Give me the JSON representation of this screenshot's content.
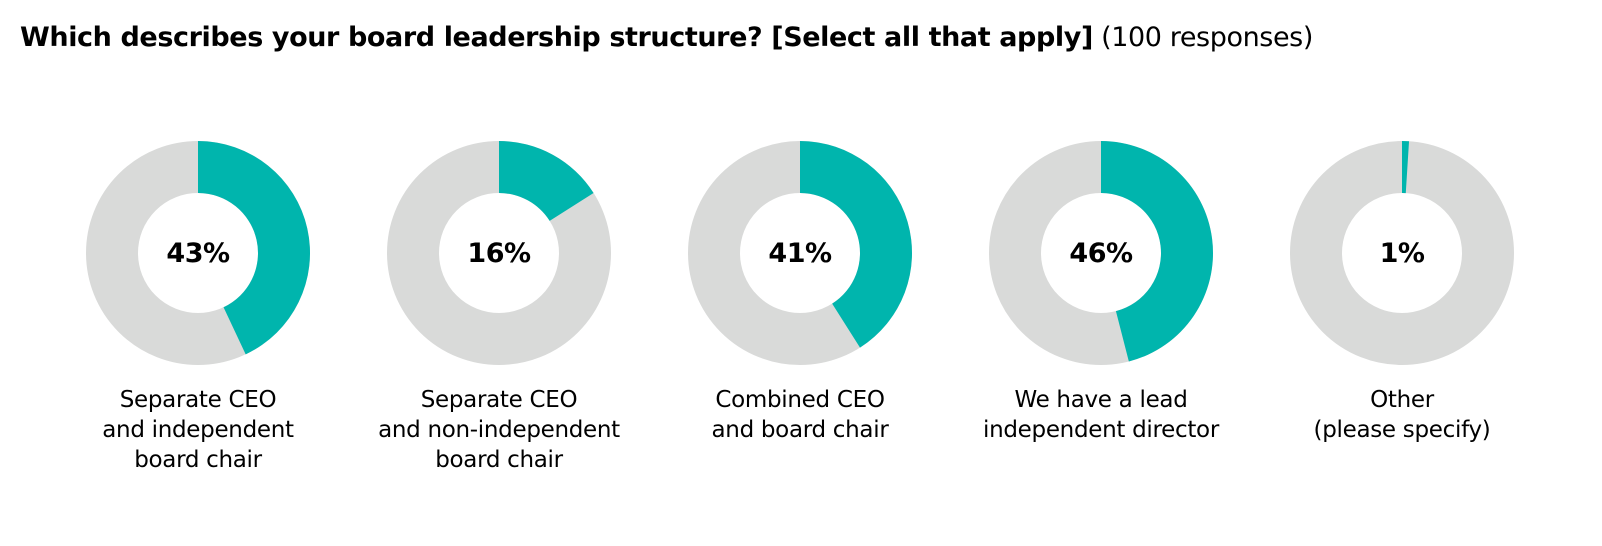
{
  "title": {
    "question": "Which describes your board leadership structure? [Select all that apply]",
    "responses": "(100 responses)"
  },
  "colors": {
    "highlight": "#00b5ad",
    "remainder": "#d9dad9",
    "text": "#000000"
  },
  "items": [
    {
      "value_label": "43%",
      "label_lines": [
        "Separate CEO",
        "and independent",
        "board chair"
      ]
    },
    {
      "value_label": "16%",
      "label_lines": [
        "Separate CEO",
        "and non-independent",
        "board chair"
      ]
    },
    {
      "value_label": "41%",
      "label_lines": [
        "Combined CEO",
        "and board chair"
      ]
    },
    {
      "value_label": "46%",
      "label_lines": [
        "We have a lead",
        "independent director"
      ]
    },
    {
      "value_label": "1%",
      "label_lines": [
        "Other",
        "(please specify)"
      ]
    }
  ],
  "chart_data": {
    "type": "pie",
    "subtype": "donut",
    "title": "Which describes your board leadership structure? [Select all that apply] (100 responses)",
    "categories": [
      "Separate CEO and independent board chair",
      "Separate CEO and non-independent board chair",
      "Combined CEO and board chair",
      "We have a lead independent director",
      "Other (please specify)"
    ],
    "values": [
      43,
      16,
      41,
      46,
      1
    ],
    "unit": "%",
    "total_responses": 100,
    "legend": "none",
    "grid": false
  }
}
